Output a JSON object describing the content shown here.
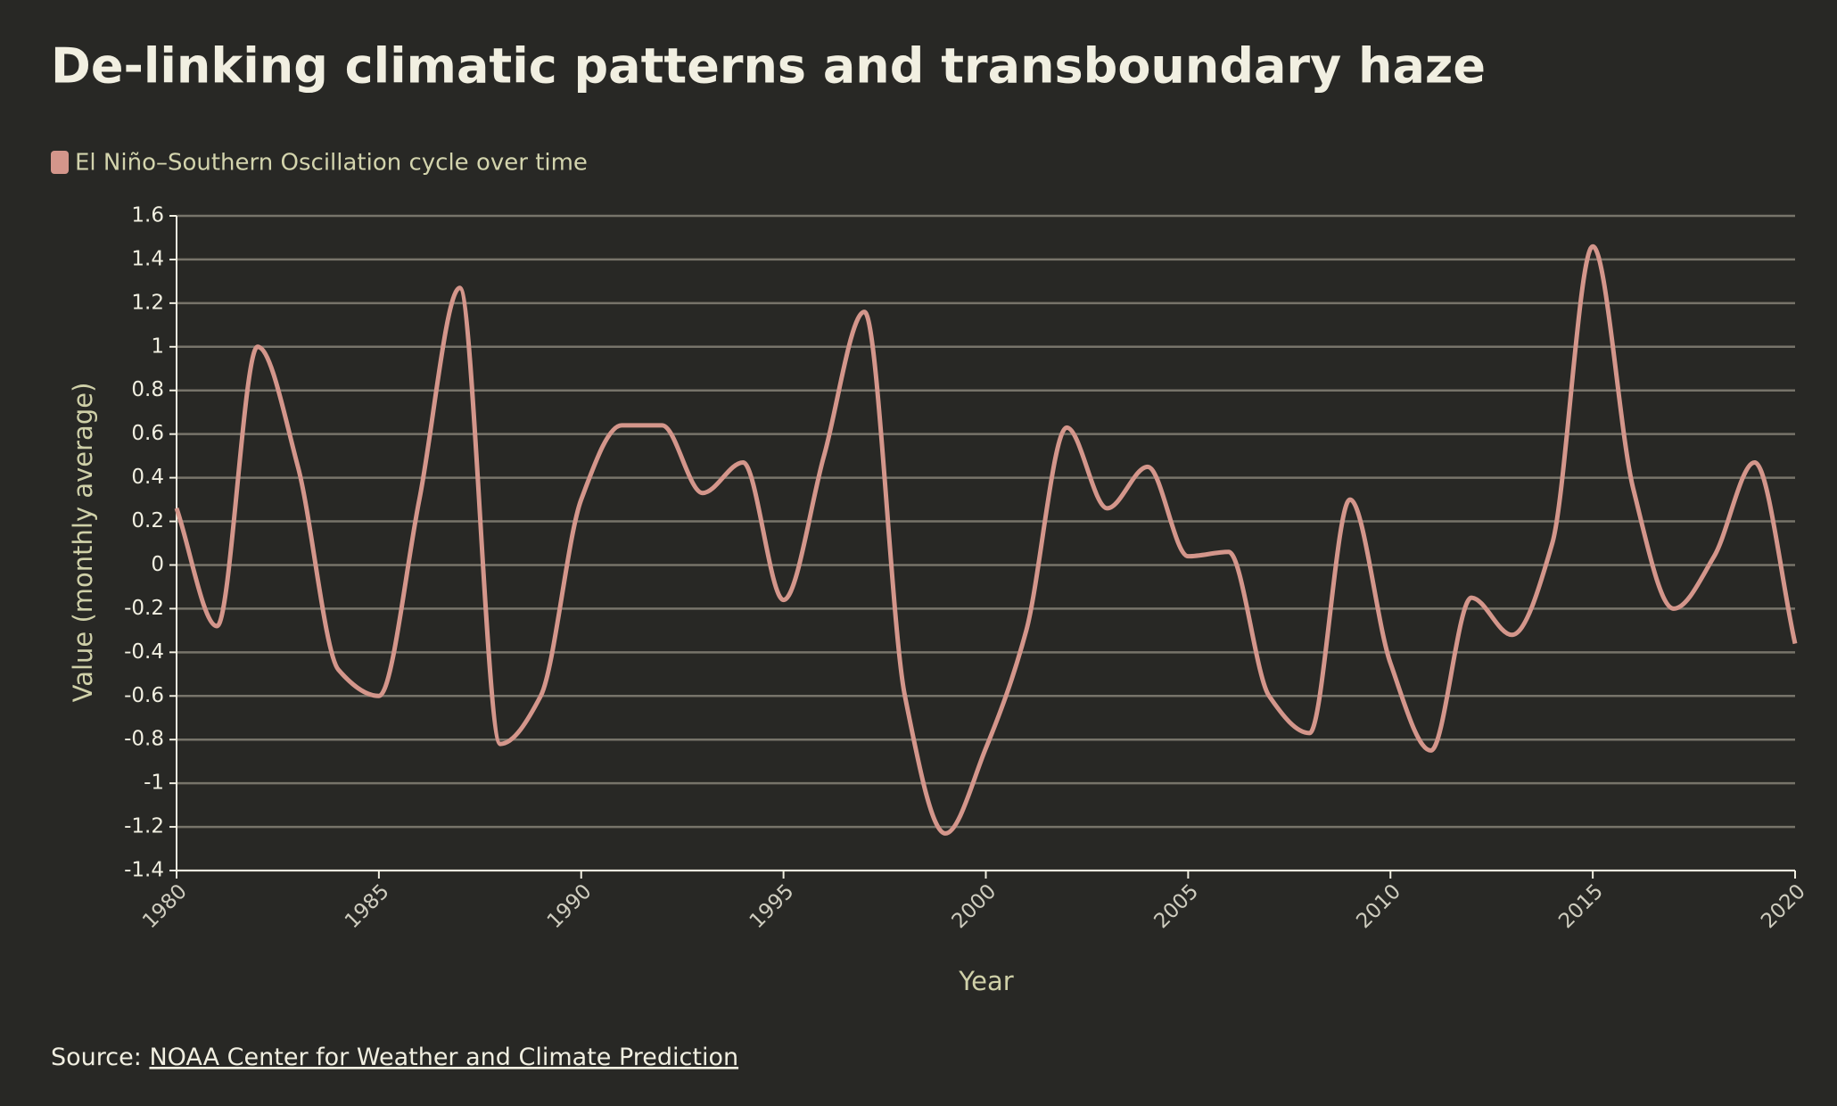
{
  "chart_data": {
    "type": "line",
    "title": "De-linking climatic patterns and transboundary haze",
    "x_label": "Year",
    "y_label": "Value (monthly average)",
    "x": [
      1980,
      1981,
      1982,
      1983,
      1984,
      1985,
      1986,
      1987,
      1988,
      1989,
      1990,
      1991,
      1992,
      1993,
      1994,
      1995,
      1996,
      1997,
      1998,
      1999,
      2000,
      2001,
      2002,
      2003,
      2004,
      2005,
      2006,
      2007,
      2008,
      2009,
      2010,
      2011,
      2012,
      2013,
      2014,
      2015,
      2016,
      2017,
      2018,
      2019,
      2020
    ],
    "series": [
      {
        "name": "El Niño–Southern Oscillation cycle over time",
        "color": "#d4968b",
        "values": [
          0.26,
          -0.28,
          1.0,
          0.45,
          -0.48,
          -0.6,
          0.3,
          1.27,
          -0.82,
          -0.6,
          0.3,
          0.64,
          0.64,
          0.33,
          0.47,
          -0.16,
          0.5,
          1.16,
          -0.6,
          -1.23,
          -0.84,
          -0.3,
          0.63,
          0.26,
          0.45,
          0.04,
          0.06,
          -0.6,
          -0.77,
          0.3,
          -0.45,
          -0.85,
          -0.15,
          -0.32,
          0.1,
          1.46,
          0.35,
          -0.2,
          0.04,
          0.47,
          -0.36
        ]
      }
    ],
    "xlim": [
      1980,
      2020
    ],
    "xticks": [
      1980,
      1985,
      1990,
      1995,
      2000,
      2005,
      2010,
      2015,
      2020
    ],
    "ylim": [
      -1.4,
      1.6
    ],
    "yticks": [
      1.6,
      1.4,
      1.2,
      1,
      0.8,
      0.6,
      0.4,
      0.2,
      0,
      -0.2,
      -0.4,
      -0.6,
      -0.8,
      -1,
      -1.2,
      -1.4
    ],
    "grid": true,
    "source": {
      "label": "Source:",
      "link": "NOAA Center for Weather and Climate Prediction"
    }
  }
}
